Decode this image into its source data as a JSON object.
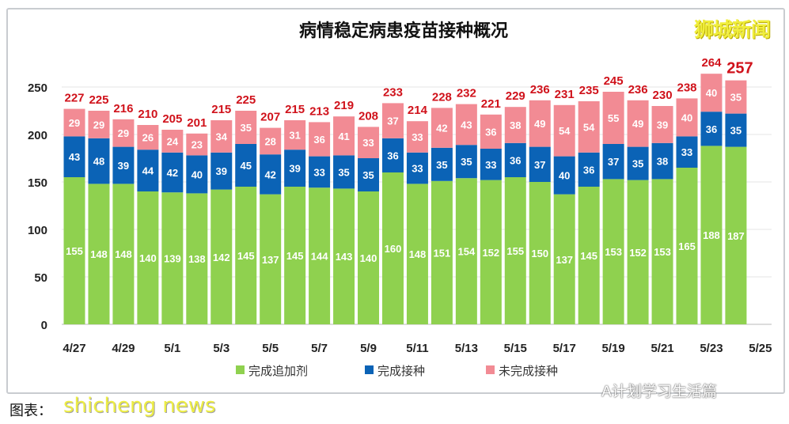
{
  "chart_data": {
    "type": "bar",
    "stacked": true,
    "title": "病情稳定病患疫苗接种概况",
    "categories": [
      "4/27",
      "4/28",
      "4/29",
      "4/30",
      "5/1",
      "5/2",
      "5/3",
      "5/4",
      "5/5",
      "5/6",
      "5/7",
      "5/8",
      "5/9",
      "5/10",
      "5/11",
      "5/12",
      "5/13",
      "5/14",
      "5/15",
      "5/16",
      "5/17",
      "5/18",
      "5/19",
      "5/20",
      "5/21",
      "5/22",
      "5/23",
      "5/24"
    ],
    "x_tick_labels": [
      "4/27",
      "4/29",
      "5/1",
      "5/3",
      "5/5",
      "5/7",
      "5/9",
      "5/11",
      "5/13",
      "5/15",
      "5/17",
      "5/19",
      "5/21",
      "5/23",
      "5/25"
    ],
    "series": [
      {
        "name": "完成追加剂",
        "color": "#8fd14f",
        "values": [
          155,
          148,
          148,
          140,
          139,
          138,
          142,
          145,
          137,
          145,
          144,
          143,
          140,
          160,
          148,
          151,
          154,
          152,
          155,
          150,
          137,
          145,
          153,
          152,
          153,
          165,
          188,
          187
        ]
      },
      {
        "name": "完成接种",
        "color": "#0b63b6",
        "values": [
          43,
          48,
          39,
          44,
          42,
          40,
          39,
          45,
          42,
          39,
          33,
          35,
          35,
          36,
          33,
          35,
          35,
          33,
          36,
          37,
          40,
          36,
          37,
          35,
          38,
          33,
          36,
          35
        ]
      },
      {
        "name": "未完成接种",
        "color": "#f28b94",
        "values": [
          29,
          29,
          29,
          26,
          24,
          23,
          34,
          35,
          28,
          31,
          36,
          41,
          33,
          37,
          33,
          42,
          43,
          36,
          38,
          49,
          54,
          54,
          55,
          49,
          39,
          40,
          40,
          35
        ]
      }
    ],
    "totals": [
      227,
      225,
      216,
      210,
      205,
      201,
      215,
      225,
      207,
      215,
      213,
      219,
      208,
      233,
      214,
      228,
      232,
      221,
      229,
      236,
      231,
      235,
      245,
      236,
      230,
      238,
      264,
      257
    ],
    "y_ticks": [
      0,
      50,
      100,
      150,
      200,
      250
    ],
    "ylim": [
      0,
      250
    ],
    "grid": true,
    "legend": "bottom",
    "total_label_color": "#d0121b"
  },
  "watermark_top": "狮城新闻",
  "credit": "图表：",
  "watermark_bottom": "shicheng news",
  "wechat": "A计划学习生活篇"
}
